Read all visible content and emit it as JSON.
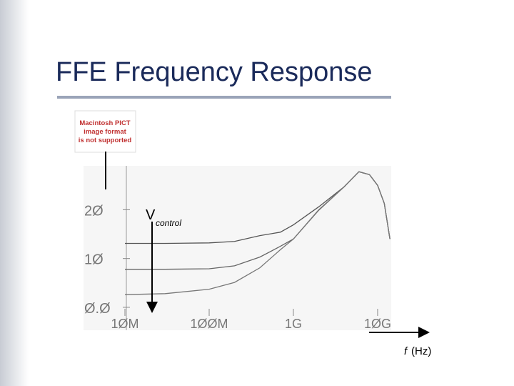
{
  "chart_data": {
    "type": "line",
    "title": "FFE Frequency Response",
    "x_log": true,
    "grid": false,
    "xlim": [
      10000000,
      14500000000
    ],
    "ylim": [
      -4.7,
      29
    ],
    "xticks": [
      {
        "value": 10000000,
        "label": "1ØM"
      },
      {
        "value": 100000000,
        "label": "1ØØM"
      },
      {
        "value": 1000000000,
        "label": "1G"
      },
      {
        "value": 10000000000,
        "label": "1ØG"
      }
    ],
    "yticks": [
      {
        "value": 0,
        "label": "Ø.Ø"
      },
      {
        "value": 10,
        "label": "1Ø"
      },
      {
        "value": 20,
        "label": "2Ø"
      }
    ],
    "x": [
      10000000,
      30000000,
      100000000,
      200000000,
      400000000,
      700000000,
      1000000000,
      2000000000,
      4000000000,
      6000000000,
      8000000000,
      10000000000,
      12000000000,
      14000000000
    ],
    "series": [
      {
        "color": "#555555",
        "values": [
          13.1,
          13.1,
          13.2,
          13.5,
          14.7,
          15.4,
          16.9,
          20.6,
          24.7,
          27.8,
          27.2,
          25,
          21.3,
          14
        ]
      },
      {
        "color": "#666666",
        "values": [
          7.8,
          7.8,
          7.9,
          8.5,
          10.3,
          12.5,
          14,
          19.9,
          24.7,
          27.8,
          27.2,
          25,
          21.3,
          14
        ]
      },
      {
        "color": "#777777",
        "values": [
          2.6,
          2.8,
          3.7,
          5.1,
          8.1,
          11.8,
          14,
          20,
          24.7,
          27.8,
          27.2,
          25,
          21.3,
          14
        ]
      }
    ],
    "annotation": {
      "symbol": "V",
      "subscript": "control"
    },
    "xlabel": {
      "variable": "f",
      "unit": "(Hz)"
    },
    "placeholder_image": [
      "Macintosh PICT",
      "image format",
      "is not supported"
    ]
  }
}
